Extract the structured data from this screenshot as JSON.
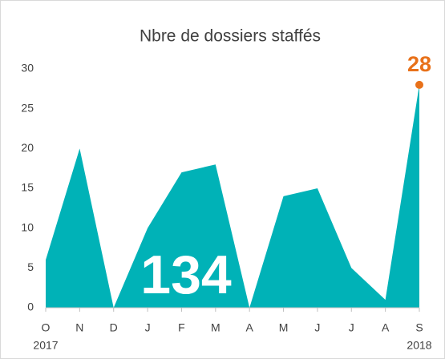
{
  "chart_data": {
    "type": "area",
    "title": "Nbre de dossiers staffés",
    "categories": [
      "O",
      "N",
      "D",
      "J",
      "F",
      "M",
      "A",
      "M",
      "J",
      "J",
      "A",
      "S"
    ],
    "category_years": [
      "2017",
      null,
      null,
      null,
      null,
      null,
      null,
      null,
      null,
      null,
      null,
      "2018"
    ],
    "values": [
      6,
      20,
      0,
      10,
      17,
      18,
      0,
      14,
      15,
      5,
      1,
      28
    ],
    "color": "#00b2b7",
    "highlight_color": "#e8711a",
    "highlight_index": 11,
    "annotation": "134",
    "ylim": [
      0,
      30
    ],
    "yticks": [
      0,
      5,
      10,
      15,
      20,
      25,
      30
    ],
    "grid": false
  }
}
